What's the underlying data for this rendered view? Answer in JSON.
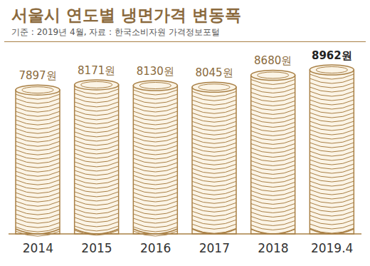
{
  "chart_data": {
    "type": "bar",
    "title": "서울시 연도별 냉면가격 변동폭",
    "subtitle": "기준 : 2019년 4월, 자료 : 한국소비자원 가격정보포털",
    "categories": [
      "2014",
      "2015",
      "2016",
      "2017",
      "2018",
      "2019.4"
    ],
    "values": [
      7897,
      8171,
      8130,
      8045,
      8680,
      8962
    ],
    "value_labels": [
      "7897원",
      "8171원",
      "8130원",
      "8045원",
      "8680원",
      "8962원"
    ],
    "data_labels": true,
    "tick_labels": "x",
    "color": "#a98046"
  }
}
